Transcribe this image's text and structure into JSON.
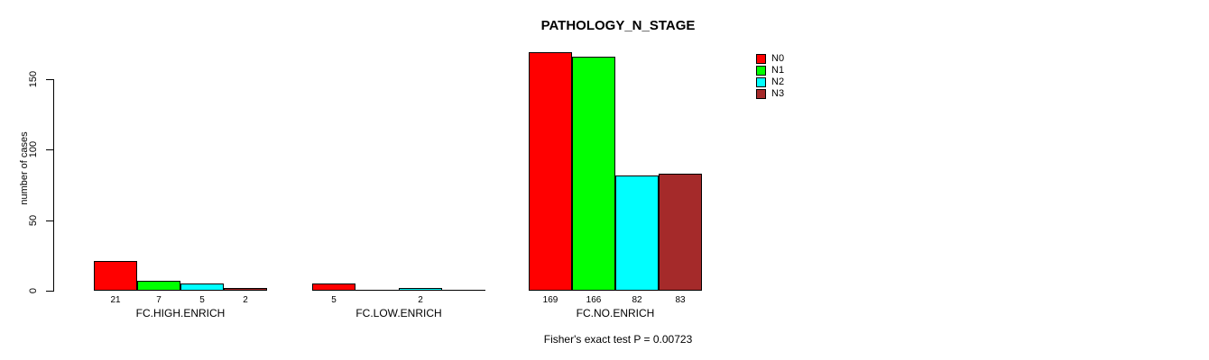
{
  "chart_data": {
    "type": "bar",
    "title": "PATHOLOGY_N_STAGE",
    "ylabel": "number of cases",
    "xlabel": "",
    "ylim": [
      0,
      175
    ],
    "yticks": [
      0,
      50,
      100,
      150
    ],
    "grid": false,
    "legend_position": "top-right",
    "categories": [
      "FC.HIGH.ENRICH",
      "FC.LOW.ENRICH",
      "FC.NO.ENRICH"
    ],
    "series": [
      {
        "name": "N0",
        "color": "#ff0000",
        "values": [
          21,
          5,
          169
        ]
      },
      {
        "name": "N1",
        "color": "#00ff00",
        "values": [
          7,
          0,
          166
        ]
      },
      {
        "name": "N2",
        "color": "#00ffff",
        "values": [
          5,
          2,
          82
        ]
      },
      {
        "name": "N3",
        "color": "#a52a2a",
        "values": [
          2,
          0,
          83
        ]
      }
    ],
    "value_labels_below_bars": true,
    "value_labels_hidden_for_zero": true,
    "annotation": "Fisher's exact test P = 0.00723"
  },
  "colors": {
    "background": "#ffffff",
    "axis": "#000000",
    "text": "#000000",
    "bar_border": "#000000"
  }
}
